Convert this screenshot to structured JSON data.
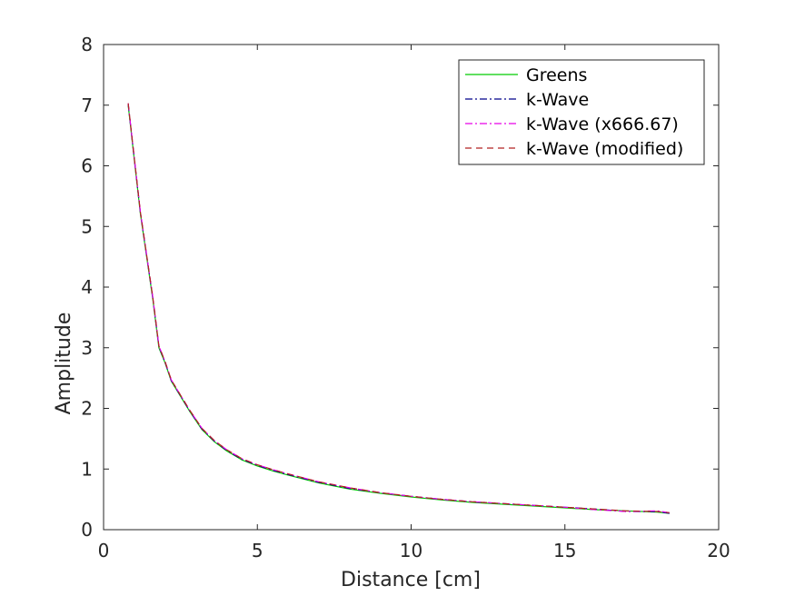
{
  "chart_data": {
    "type": "line",
    "xlabel": "Distance [cm]",
    "ylabel": "Amplitude",
    "xlim": [
      0,
      20
    ],
    "ylim": [
      0,
      8
    ],
    "xticks": [
      "0",
      "5",
      "10",
      "15",
      "20"
    ],
    "yticks": [
      "0",
      "1",
      "2",
      "3",
      "4",
      "5",
      "6",
      "7",
      "8"
    ],
    "grid": false,
    "legend_position": "top-right",
    "series": [
      {
        "name": "Greens",
        "color": "#00cc00",
        "style": "solid",
        "x": [
          0.8,
          1.0,
          1.2,
          1.4,
          1.6,
          1.8,
          2.0,
          2.2,
          2.5,
          2.8,
          3.2,
          3.6,
          4.0,
          4.5,
          5.0,
          5.5,
          6.0,
          7.0,
          8.0,
          9.0,
          10.0,
          11.0,
          12.0,
          13.0,
          14.0,
          15.0,
          16.0,
          17.0,
          18.0,
          18.4
        ],
        "y": [
          7.0,
          6.1,
          5.2,
          4.5,
          3.8,
          3.0,
          2.75,
          2.45,
          2.2,
          1.95,
          1.65,
          1.45,
          1.3,
          1.15,
          1.05,
          0.97,
          0.9,
          0.77,
          0.67,
          0.6,
          0.54,
          0.49,
          0.45,
          0.42,
          0.39,
          0.36,
          0.33,
          0.31,
          0.29,
          0.27
        ]
      },
      {
        "name": "k-Wave",
        "color": "#00008b",
        "style": "dashdot",
        "x": [
          0.8,
          1.0,
          1.2,
          1.4,
          1.6,
          1.8,
          2.0,
          2.2,
          2.5,
          2.8,
          3.2,
          3.6,
          4.0,
          4.5,
          5.0,
          5.5,
          6.0,
          7.0,
          8.0,
          9.0,
          10.0,
          11.0,
          12.0,
          13.0,
          14.0,
          15.0,
          16.0,
          17.0,
          18.0,
          18.4
        ],
        "y": [
          7.02,
          6.12,
          5.22,
          4.52,
          3.82,
          3.02,
          2.76,
          2.46,
          2.21,
          1.96,
          1.66,
          1.46,
          1.31,
          1.16,
          1.06,
          0.98,
          0.91,
          0.78,
          0.68,
          0.61,
          0.55,
          0.5,
          0.46,
          0.43,
          0.4,
          0.37,
          0.34,
          0.3,
          0.3,
          0.27
        ]
      },
      {
        "name": "k-Wave (x666.67)",
        "color": "#e600e6",
        "style": "dashdot",
        "x": [
          0.8,
          1.0,
          1.2,
          1.4,
          1.6,
          1.8,
          2.0,
          2.2,
          2.5,
          2.8,
          3.2,
          3.6,
          4.0,
          4.5,
          5.0,
          5.5,
          6.0,
          7.0,
          8.0,
          9.0,
          10.0,
          11.0,
          12.0,
          13.0,
          14.0,
          15.0,
          16.0,
          17.0,
          18.0,
          18.4
        ],
        "y": [
          7.03,
          6.13,
          5.23,
          4.53,
          3.83,
          3.03,
          2.77,
          2.47,
          2.22,
          1.97,
          1.67,
          1.47,
          1.32,
          1.17,
          1.07,
          0.99,
          0.92,
          0.79,
          0.69,
          0.61,
          0.55,
          0.5,
          0.46,
          0.43,
          0.4,
          0.37,
          0.33,
          0.3,
          0.31,
          0.28
        ]
      },
      {
        "name": "k-Wave (modified)",
        "color": "#b22222",
        "style": "dashed",
        "x": [
          0.8,
          1.0,
          1.2,
          1.4,
          1.6,
          1.8,
          2.0,
          2.2,
          2.5,
          2.8,
          3.2,
          3.6,
          4.0,
          4.5,
          5.0,
          5.5,
          6.0,
          7.0,
          8.0,
          9.0,
          10.0,
          11.0,
          12.0,
          13.0,
          14.0,
          15.0,
          16.0,
          17.0,
          18.0,
          18.4
        ],
        "y": [
          7.03,
          6.13,
          5.23,
          4.53,
          3.83,
          3.03,
          2.77,
          2.47,
          2.22,
          1.97,
          1.67,
          1.47,
          1.32,
          1.17,
          1.07,
          0.99,
          0.92,
          0.79,
          0.69,
          0.61,
          0.55,
          0.5,
          0.46,
          0.43,
          0.4,
          0.37,
          0.34,
          0.31,
          0.3,
          0.28
        ]
      }
    ]
  }
}
